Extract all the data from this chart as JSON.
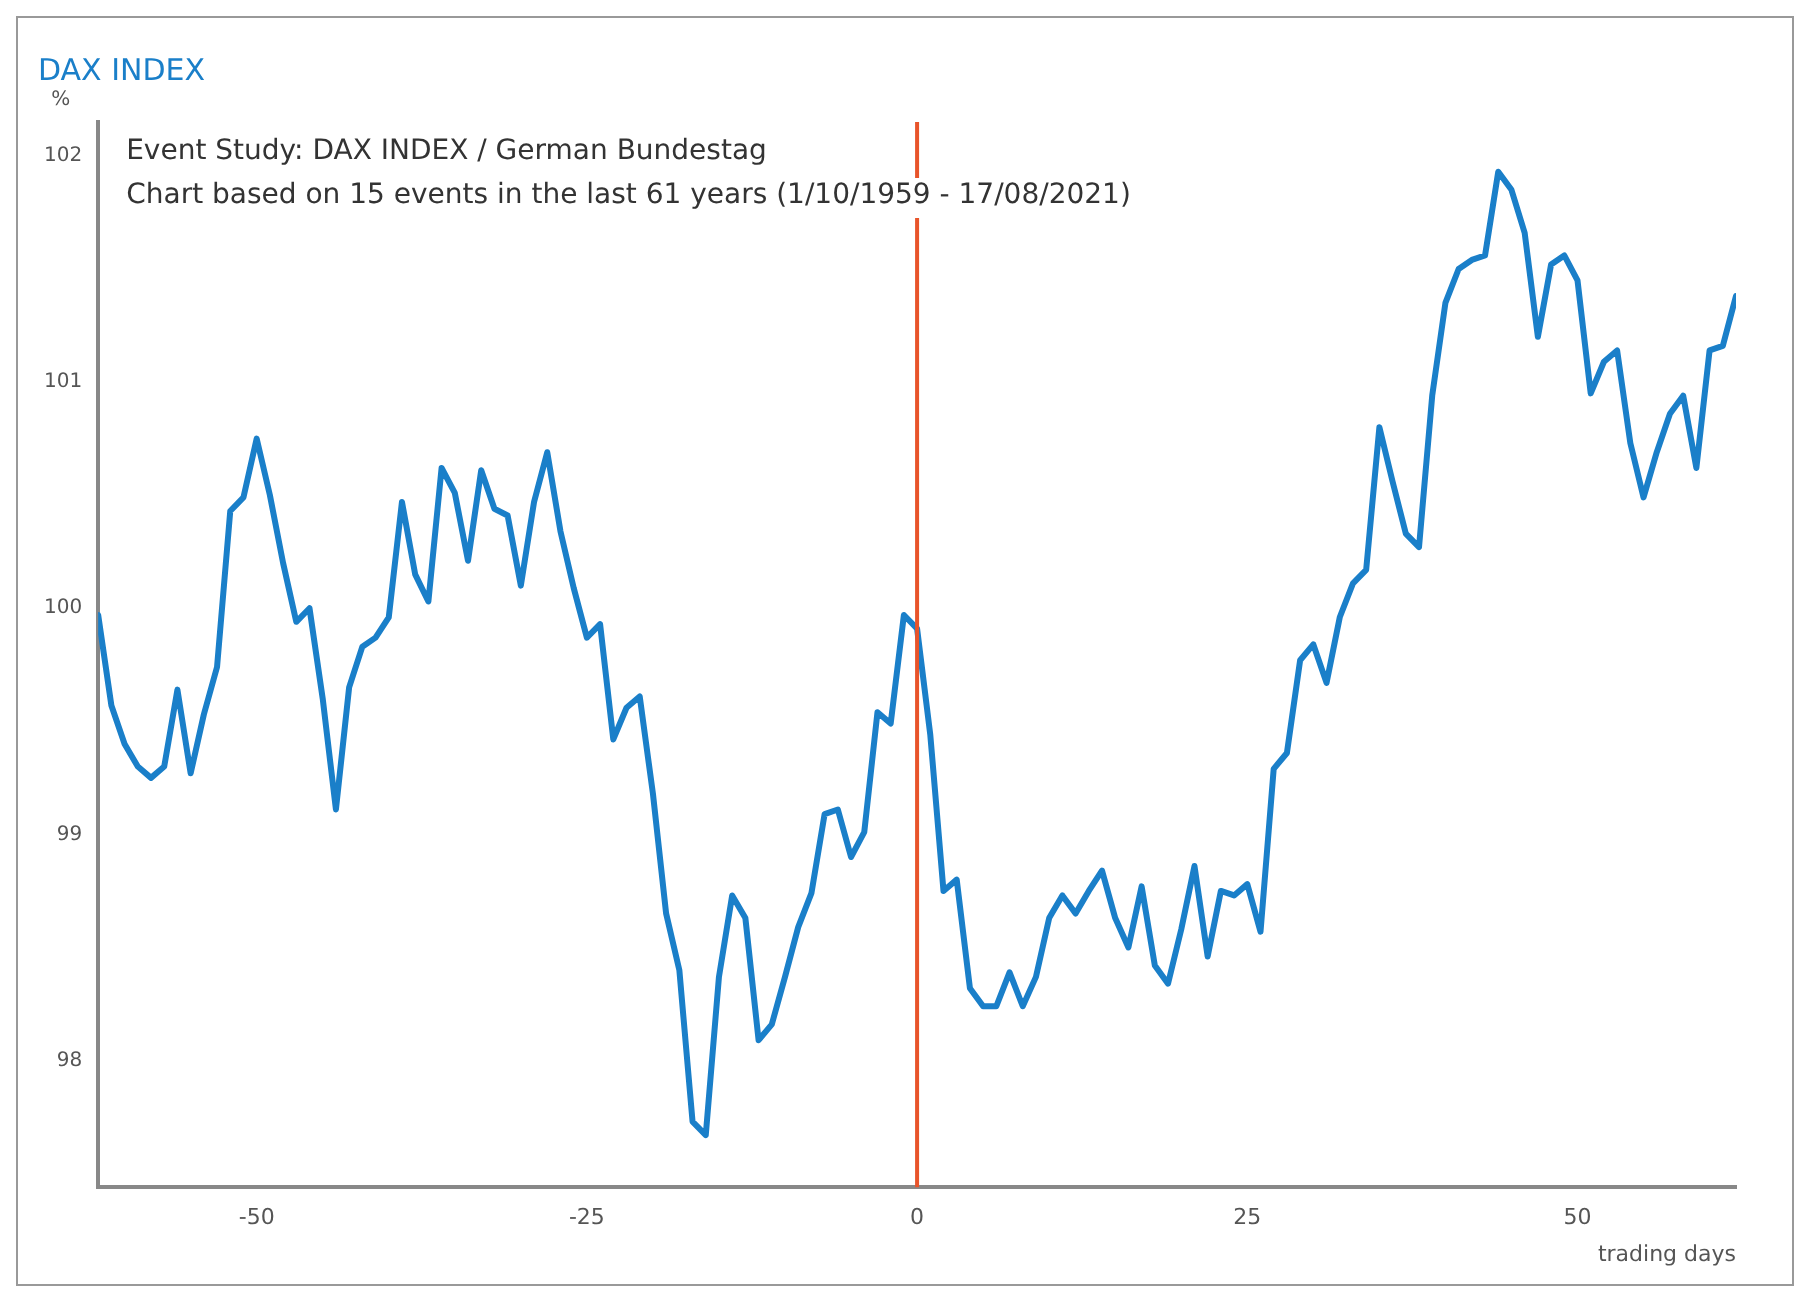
{
  "chart_data": {
    "type": "line",
    "title": "DAX INDEX",
    "ylabel": "%",
    "xlabel": "trading days",
    "annotations": [
      "Event Study: DAX INDEX / German Bundestag",
      "Chart based on 15 events in the last 61 years (1/10/1959 - 17/08/2021)"
    ],
    "x": [
      -62,
      -61,
      -60,
      -59,
      -58,
      -57,
      -56,
      -55,
      -54,
      -53,
      -52,
      -51,
      -50,
      -49,
      -48,
      -47,
      -46,
      -45,
      -44,
      -43,
      -42,
      -41,
      -40,
      -39,
      -38,
      -37,
      -36,
      -35,
      -34,
      -33,
      -32,
      -31,
      -30,
      -29,
      -28,
      -27,
      -26,
      -25,
      -24,
      -23,
      -22,
      -21,
      -20,
      -19,
      -18,
      -17,
      -16,
      -15,
      -14,
      -13,
      -12,
      -11,
      -10,
      -9,
      -8,
      -7,
      -6,
      -5,
      -4,
      -3,
      -2,
      -1,
      0,
      1,
      2,
      3,
      4,
      5,
      6,
      7,
      8,
      9,
      10,
      11,
      12,
      13,
      14,
      15,
      16,
      17,
      18,
      19,
      20,
      21,
      22,
      23,
      24,
      25,
      26,
      27,
      28,
      29,
      30,
      31,
      32,
      33,
      34,
      35,
      36,
      37,
      38,
      39,
      40,
      41,
      42,
      43,
      44,
      45,
      46,
      47,
      48,
      49,
      50,
      51,
      52,
      53,
      54,
      55,
      56,
      57,
      58,
      59,
      60,
      61,
      62
    ],
    "series": [
      {
        "color": "#1a7fc9",
        "values": [
          99.97,
          99.57,
          99.4,
          99.3,
          99.25,
          99.3,
          99.64,
          99.27,
          99.53,
          99.74,
          100.43,
          100.49,
          100.75,
          100.5,
          100.2,
          99.94,
          100.0,
          99.6,
          99.11,
          99.65,
          99.83,
          99.87,
          99.96,
          100.47,
          100.15,
          100.03,
          100.62,
          100.51,
          100.21,
          100.61,
          100.44,
          100.41,
          100.1,
          100.47,
          100.69,
          100.34,
          100.09,
          99.87,
          99.93,
          99.42,
          99.56,
          99.61,
          99.18,
          98.65,
          98.4,
          97.73,
          97.67,
          98.37,
          98.73,
          98.63,
          98.09,
          98.16,
          98.37,
          98.59,
          98.74,
          99.09,
          99.11,
          98.9,
          99.01,
          99.54,
          99.49,
          99.97,
          99.91,
          99.44,
          98.75,
          98.8,
          98.32,
          98.24,
          98.24,
          98.39,
          98.24,
          98.37,
          98.63,
          98.73,
          98.65,
          98.75,
          98.84,
          98.63,
          98.5,
          98.77,
          98.42,
          98.34,
          98.58,
          98.86,
          98.46,
          98.75,
          98.73,
          98.78,
          98.57,
          99.29,
          99.36,
          99.77,
          99.84,
          99.67,
          99.96,
          100.11,
          100.17,
          100.8,
          100.56,
          100.33,
          100.27,
          100.94,
          101.35,
          101.5,
          101.54,
          101.56,
          101.93,
          101.85,
          101.66,
          101.2,
          101.52,
          101.56,
          101.45,
          100.95,
          101.09,
          101.14,
          100.73,
          100.49,
          100.69,
          100.86,
          100.94,
          100.62,
          101.14,
          101.16,
          101.38
        ]
      }
    ],
    "xlim": [
      -62,
      62
    ],
    "xticks": [
      -50,
      -25,
      0,
      25,
      50
    ],
    "ylim": [
      97.44,
      102.15
    ],
    "yticks": [
      98,
      99,
      100,
      101,
      102
    ],
    "ref_lines": [
      {
        "axis": "x",
        "value": 0,
        "color": "#e8542a"
      }
    ],
    "grid": false,
    "legend": false,
    "marker": "none",
    "line_style": "solid"
  }
}
